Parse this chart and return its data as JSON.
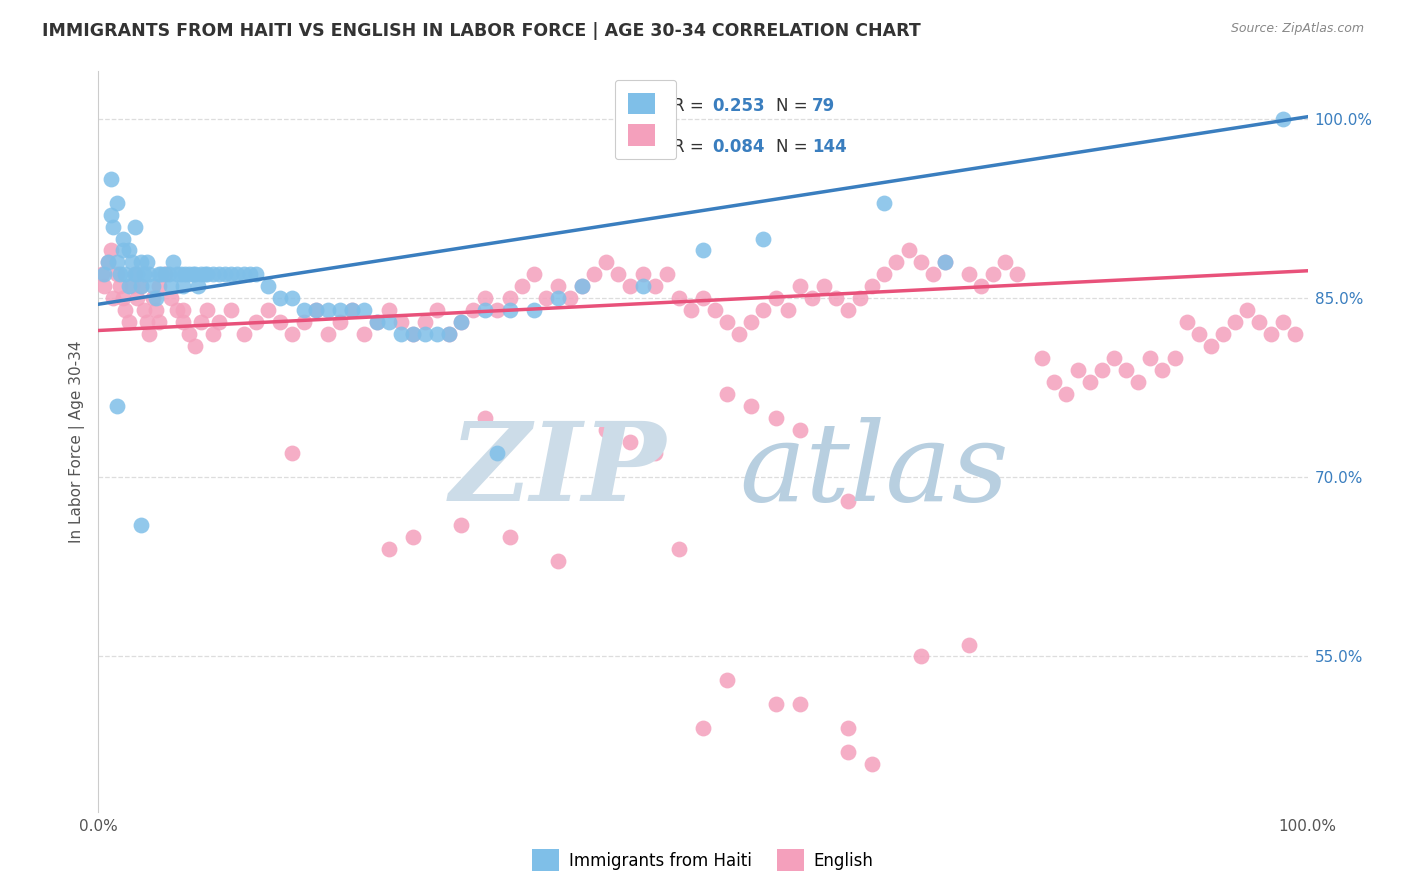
{
  "title": "IMMIGRANTS FROM HAITI VS ENGLISH IN LABOR FORCE | AGE 30-34 CORRELATION CHART",
  "source_text": "Source: ZipAtlas.com",
  "ylabel": "In Labor Force | Age 30-34",
  "xlim": [
    0.0,
    1.0
  ],
  "ylim": [
    0.42,
    1.04
  ],
  "yticks": [
    0.55,
    0.7,
    0.85,
    1.0
  ],
  "ytick_labels": [
    "55.0%",
    "70.0%",
    "85.0%",
    "100.0%"
  ],
  "xticks": [
    0.0,
    0.25,
    0.5,
    0.75,
    1.0
  ],
  "xtick_labels": [
    "0.0%",
    "",
    "",
    "",
    "100.0%"
  ],
  "blue_color": "#7fbfe8",
  "pink_color": "#f4a0bc",
  "blue_line_color": "#3a7ebf",
  "pink_line_color": "#e8517a",
  "watermark_zip_color": "#ccdce8",
  "watermark_atlas_color": "#b8cfe0",
  "grid_color": "#dddddd",
  "title_color": "#333333",
  "ylabel_color": "#555555",
  "ytick_color": "#3a7ebf",
  "source_color": "#888888",
  "blue_scatter_x": [
    0.005,
    0.008,
    0.01,
    0.01,
    0.012,
    0.015,
    0.015,
    0.018,
    0.02,
    0.02,
    0.022,
    0.025,
    0.025,
    0.028,
    0.03,
    0.03,
    0.032,
    0.035,
    0.035,
    0.038,
    0.04,
    0.042,
    0.045,
    0.048,
    0.05,
    0.052,
    0.055,
    0.058,
    0.06,
    0.062,
    0.065,
    0.068,
    0.07,
    0.072,
    0.075,
    0.078,
    0.08,
    0.082,
    0.085,
    0.088,
    0.09,
    0.095,
    0.1,
    0.105,
    0.11,
    0.115,
    0.12,
    0.125,
    0.13,
    0.14,
    0.15,
    0.16,
    0.17,
    0.18,
    0.19,
    0.2,
    0.21,
    0.22,
    0.23,
    0.24,
    0.25,
    0.26,
    0.27,
    0.28,
    0.29,
    0.3,
    0.32,
    0.34,
    0.36,
    0.38,
    0.4,
    0.45,
    0.5,
    0.55,
    0.65,
    0.7,
    0.98,
    0.015,
    0.035,
    0.33
  ],
  "blue_scatter_y": [
    0.87,
    0.88,
    0.92,
    0.95,
    0.91,
    0.88,
    0.93,
    0.87,
    0.89,
    0.9,
    0.87,
    0.86,
    0.89,
    0.88,
    0.87,
    0.91,
    0.87,
    0.86,
    0.88,
    0.87,
    0.88,
    0.87,
    0.86,
    0.85,
    0.87,
    0.87,
    0.87,
    0.87,
    0.86,
    0.88,
    0.87,
    0.87,
    0.86,
    0.87,
    0.87,
    0.87,
    0.87,
    0.86,
    0.87,
    0.87,
    0.87,
    0.87,
    0.87,
    0.87,
    0.87,
    0.87,
    0.87,
    0.87,
    0.87,
    0.86,
    0.85,
    0.85,
    0.84,
    0.84,
    0.84,
    0.84,
    0.84,
    0.84,
    0.83,
    0.83,
    0.82,
    0.82,
    0.82,
    0.82,
    0.82,
    0.83,
    0.84,
    0.84,
    0.84,
    0.85,
    0.86,
    0.86,
    0.89,
    0.9,
    0.93,
    0.88,
    1.0,
    0.76,
    0.66,
    0.72
  ],
  "pink_scatter_x": [
    0.003,
    0.005,
    0.008,
    0.01,
    0.012,
    0.015,
    0.018,
    0.02,
    0.022,
    0.025,
    0.028,
    0.03,
    0.032,
    0.035,
    0.038,
    0.04,
    0.042,
    0.045,
    0.048,
    0.05,
    0.055,
    0.06,
    0.065,
    0.07,
    0.075,
    0.08,
    0.085,
    0.09,
    0.095,
    0.1,
    0.11,
    0.12,
    0.13,
    0.14,
    0.15,
    0.16,
    0.17,
    0.18,
    0.19,
    0.2,
    0.21,
    0.22,
    0.23,
    0.24,
    0.25,
    0.26,
    0.27,
    0.28,
    0.29,
    0.3,
    0.31,
    0.32,
    0.33,
    0.34,
    0.35,
    0.36,
    0.37,
    0.38,
    0.39,
    0.4,
    0.41,
    0.42,
    0.43,
    0.44,
    0.45,
    0.46,
    0.47,
    0.48,
    0.49,
    0.5,
    0.51,
    0.52,
    0.53,
    0.54,
    0.55,
    0.56,
    0.57,
    0.58,
    0.59,
    0.6,
    0.61,
    0.62,
    0.63,
    0.64,
    0.65,
    0.66,
    0.67,
    0.68,
    0.69,
    0.7,
    0.72,
    0.73,
    0.74,
    0.75,
    0.76,
    0.78,
    0.79,
    0.8,
    0.81,
    0.82,
    0.83,
    0.84,
    0.85,
    0.86,
    0.87,
    0.88,
    0.89,
    0.9,
    0.91,
    0.92,
    0.93,
    0.94,
    0.95,
    0.96,
    0.97,
    0.98,
    0.99,
    0.5,
    0.52,
    0.58,
    0.62,
    0.68,
    0.72,
    0.62,
    0.64,
    0.56,
    0.48,
    0.38,
    0.34,
    0.3,
    0.26,
    0.24,
    0.32,
    0.42,
    0.44,
    0.46,
    0.52,
    0.54,
    0.56,
    0.58,
    0.62,
    0.16,
    0.05,
    0.07
  ],
  "pink_scatter_y": [
    0.87,
    0.86,
    0.88,
    0.89,
    0.85,
    0.87,
    0.86,
    0.85,
    0.84,
    0.83,
    0.86,
    0.87,
    0.85,
    0.86,
    0.84,
    0.83,
    0.82,
    0.85,
    0.84,
    0.86,
    0.87,
    0.85,
    0.84,
    0.83,
    0.82,
    0.81,
    0.83,
    0.84,
    0.82,
    0.83,
    0.84,
    0.82,
    0.83,
    0.84,
    0.83,
    0.82,
    0.83,
    0.84,
    0.82,
    0.83,
    0.84,
    0.82,
    0.83,
    0.84,
    0.83,
    0.82,
    0.83,
    0.84,
    0.82,
    0.83,
    0.84,
    0.85,
    0.84,
    0.85,
    0.86,
    0.87,
    0.85,
    0.86,
    0.85,
    0.86,
    0.87,
    0.88,
    0.87,
    0.86,
    0.87,
    0.86,
    0.87,
    0.85,
    0.84,
    0.85,
    0.84,
    0.83,
    0.82,
    0.83,
    0.84,
    0.85,
    0.84,
    0.86,
    0.85,
    0.86,
    0.85,
    0.84,
    0.85,
    0.86,
    0.87,
    0.88,
    0.89,
    0.88,
    0.87,
    0.88,
    0.87,
    0.86,
    0.87,
    0.88,
    0.87,
    0.8,
    0.78,
    0.77,
    0.79,
    0.78,
    0.79,
    0.8,
    0.79,
    0.78,
    0.8,
    0.79,
    0.8,
    0.83,
    0.82,
    0.81,
    0.82,
    0.83,
    0.84,
    0.83,
    0.82,
    0.83,
    0.82,
    0.49,
    0.53,
    0.51,
    0.49,
    0.55,
    0.56,
    0.47,
    0.46,
    0.51,
    0.64,
    0.63,
    0.65,
    0.66,
    0.65,
    0.64,
    0.75,
    0.74,
    0.73,
    0.72,
    0.77,
    0.76,
    0.75,
    0.74,
    0.68,
    0.72,
    0.83,
    0.84
  ],
  "blue_line_y_start": 0.845,
  "blue_line_y_end": 1.002,
  "pink_line_y_start": 0.823,
  "pink_line_y_end": 0.873
}
